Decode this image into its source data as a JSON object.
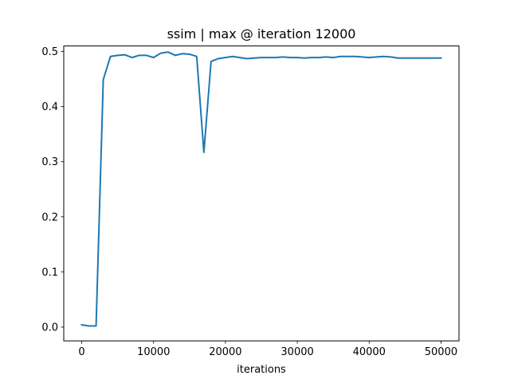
{
  "chart_data": {
    "type": "line",
    "title": "ssim | max @ iteration 12000",
    "xlabel": "iterations",
    "ylabel": "",
    "xlim": [
      -2500,
      52500
    ],
    "ylim": [
      -0.025,
      0.51
    ],
    "xticks": [
      0,
      10000,
      20000,
      30000,
      40000,
      50000
    ],
    "xtick_labels": [
      "0",
      "10000",
      "20000",
      "30000",
      "40000",
      "50000"
    ],
    "yticks": [
      0.0,
      0.1,
      0.2,
      0.3,
      0.4,
      0.5
    ],
    "ytick_labels": [
      "0.0",
      "0.1",
      "0.2",
      "0.3",
      "0.4",
      "0.5"
    ],
    "grid": false,
    "legend": "none",
    "series": [
      {
        "color": "#1f77b4",
        "x": [
          0,
          1000,
          2000,
          3000,
          4000,
          5000,
          6000,
          7000,
          8000,
          9000,
          10000,
          11000,
          12000,
          13000,
          14000,
          15000,
          16000,
          17000,
          18000,
          19000,
          20000,
          21000,
          22000,
          23000,
          24000,
          25000,
          26000,
          27000,
          28000,
          29000,
          30000,
          31000,
          32000,
          33000,
          34000,
          35000,
          36000,
          37000,
          38000,
          39000,
          40000,
          41000,
          42000,
          43000,
          44000,
          45000,
          46000,
          47000,
          48000,
          49000,
          50000
        ],
        "y": [
          0.004,
          0.002,
          0.002,
          0.449,
          0.491,
          0.493,
          0.494,
          0.489,
          0.493,
          0.493,
          0.489,
          0.497,
          0.499,
          0.493,
          0.496,
          0.495,
          0.491,
          0.317,
          0.482,
          0.487,
          0.489,
          0.491,
          0.489,
          0.487,
          0.488,
          0.489,
          0.489,
          0.489,
          0.49,
          0.489,
          0.489,
          0.488,
          0.489,
          0.489,
          0.49,
          0.489,
          0.491,
          0.491,
          0.491,
          0.49,
          0.489,
          0.49,
          0.491,
          0.49,
          0.488,
          0.488,
          0.488,
          0.488,
          0.488,
          0.488,
          0.488
        ]
      }
    ]
  }
}
